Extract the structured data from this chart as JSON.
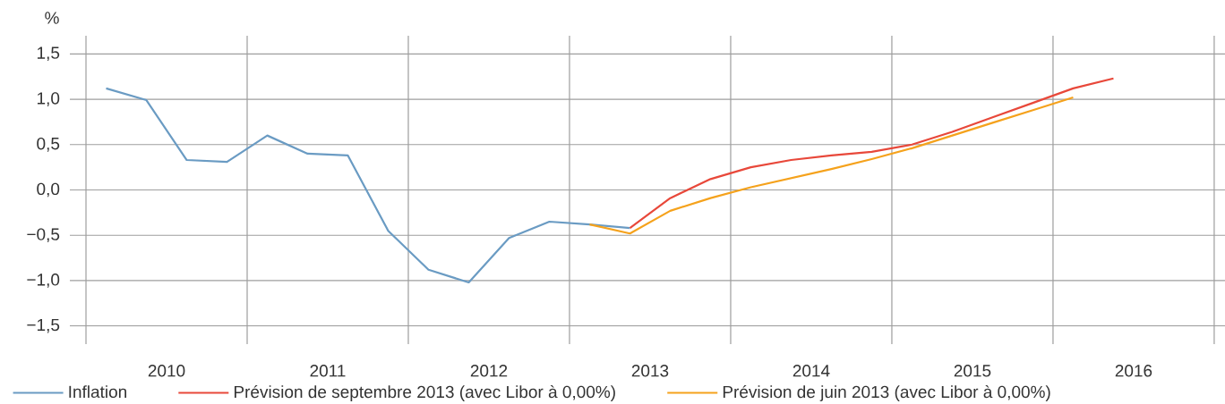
{
  "chart_data": {
    "type": "line",
    "ylabel": "%",
    "xlim": [
      2009.9,
      2017.067
    ],
    "ylim": [
      -1.7,
      1.7
    ],
    "xticks": [
      {
        "value": 2010,
        "label": null
      },
      {
        "value": 2010.5,
        "label": "2010"
      },
      {
        "value": 2011,
        "label": null
      },
      {
        "value": 2011.5,
        "label": "2011"
      },
      {
        "value": 2012,
        "label": null
      },
      {
        "value": 2012.5,
        "label": "2012"
      },
      {
        "value": 2013,
        "label": null
      },
      {
        "value": 2013.5,
        "label": "2013"
      },
      {
        "value": 2014,
        "label": null
      },
      {
        "value": 2014.5,
        "label": "2014"
      },
      {
        "value": 2015,
        "label": null
      },
      {
        "value": 2015.5,
        "label": "2015"
      },
      {
        "value": 2016,
        "label": null
      },
      {
        "value": 2016.5,
        "label": "2016"
      },
      {
        "value": 2017,
        "label": null
      }
    ],
    "yticks": [
      {
        "value": -1.5,
        "label": "−1,5"
      },
      {
        "value": -1.0,
        "label": "−1,0"
      },
      {
        "value": -0.5,
        "label": "−0,5"
      },
      {
        "value": 0,
        "label": "0,0"
      },
      {
        "value": 0.5,
        "label": "0,5"
      },
      {
        "value": 1.0,
        "label": "1,0"
      },
      {
        "value": 1.5,
        "label": "1,5"
      }
    ],
    "grid": true,
    "legend": "bottom",
    "line_style": "solid",
    "marker": "none",
    "series": [
      {
        "name": "Inflation",
        "color": "#6a9bc3",
        "x": [
          2010.125,
          2010.375,
          2010.625,
          2010.875,
          2011.125,
          2011.375,
          2011.625,
          2011.875,
          2012.125,
          2012.375,
          2012.625,
          2012.875,
          2013.125,
          2013.375
        ],
        "values": [
          1.12,
          0.99,
          0.33,
          0.31,
          0.6,
          0.4,
          0.38,
          -0.45,
          -0.88,
          -1.02,
          -0.53,
          -0.35,
          -0.38,
          -0.42
        ]
      },
      {
        "name": "Prévision de septembre 2013 (avec Libor à 0,00%)",
        "color": "#e8483a",
        "x": [
          2013.375,
          2013.625,
          2013.875,
          2014.125,
          2014.375,
          2014.625,
          2014.875,
          2015.125,
          2015.375,
          2015.625,
          2015.875,
          2016.125,
          2016.375
        ],
        "values": [
          -0.42,
          -0.09,
          0.12,
          0.25,
          0.33,
          0.38,
          0.42,
          0.5,
          0.64,
          0.8,
          0.96,
          1.12,
          1.23
        ]
      },
      {
        "name": "Prévision de juin 2013 (avec Libor à 0,00%)",
        "color": "#f5a21c",
        "x": [
          2013.125,
          2013.375,
          2013.625,
          2013.875,
          2014.125,
          2014.375,
          2014.625,
          2014.875,
          2015.125,
          2015.375,
          2015.625,
          2015.875,
          2016.125
        ],
        "values": [
          -0.38,
          -0.48,
          -0.23,
          -0.09,
          0.03,
          0.13,
          0.23,
          0.34,
          0.46,
          0.6,
          0.74,
          0.88,
          1.02
        ]
      }
    ]
  }
}
